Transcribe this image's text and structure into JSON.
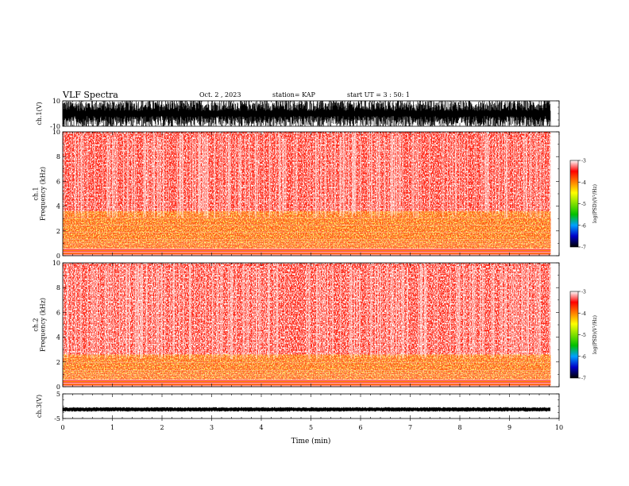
{
  "header": {
    "title": "VLF Spectra",
    "date": "Oct. 2 , 2023",
    "station": "station= KAP",
    "start_ut": "start UT =  3 : 50: 1"
  },
  "chart_data": [
    {
      "type": "line",
      "panel": "ch1-waveform",
      "ylabel": "ch.1(V)",
      "ylim": [
        -10,
        10
      ],
      "y_ticks": [
        "10",
        "-10"
      ],
      "xlim": [
        0,
        10
      ],
      "x_data_extent": [
        0,
        9.83
      ],
      "trace_color": "#000000"
    },
    {
      "type": "heatmap",
      "panel": "ch1-spectrogram",
      "ylabel": "ch.1\nFrequency (kHz)",
      "ylim": [
        0,
        10
      ],
      "y_ticks": [
        "0",
        "2",
        "4",
        "6",
        "8",
        "10"
      ],
      "xlim": [
        0,
        10
      ],
      "x_data_extent": [
        0,
        9.83
      ],
      "intense_band_khz": [
        0.6,
        3.6
      ],
      "colorbar": {
        "label": "log(PSD)(V²/Hz)",
        "range": [
          -7,
          -3
        ],
        "ticks": [
          "-3",
          "-4",
          "-5",
          "-6",
          "-7"
        ],
        "colors": [
          "#000000",
          "#0000c8",
          "#00a0ff",
          "#00c000",
          "#80e000",
          "#ffff00",
          "#ff8000",
          "#ff0000",
          "#ffffff"
        ]
      }
    },
    {
      "type": "heatmap",
      "panel": "ch2-spectrogram",
      "ylabel": "ch.2\nFrequency (kHz)",
      "ylim": [
        0,
        10
      ],
      "y_ticks": [
        "0",
        "2",
        "4",
        "6",
        "8",
        "10"
      ],
      "xlim": [
        0,
        10
      ],
      "x_data_extent": [
        0,
        9.83
      ],
      "intense_band_khz": [
        0.6,
        2.6
      ],
      "colorbar": {
        "label": "log(PSD)(V²/Hz)",
        "range": [
          -7,
          -3
        ],
        "ticks": [
          "-3",
          "-4",
          "-5",
          "-6",
          "-7"
        ],
        "colors": [
          "#000000",
          "#0000c8",
          "#00a0ff",
          "#00c000",
          "#80e000",
          "#ffff00",
          "#ff8000",
          "#ff0000",
          "#ffffff"
        ]
      }
    },
    {
      "type": "line",
      "panel": "ch3-waveform",
      "ylabel": "ch.3(V)",
      "ylim": [
        -5,
        5
      ],
      "y_ticks": [
        "5",
        "-5"
      ],
      "xlim": [
        0,
        10
      ],
      "x_data_extent": [
        0,
        9.83
      ],
      "xlabel": "Time (min)",
      "x_ticks": [
        "0",
        "1",
        "2",
        "3",
        "4",
        "5",
        "6",
        "7",
        "8",
        "9",
        "10"
      ],
      "trace_level_v": -1.3,
      "trace_color": "#000000"
    }
  ]
}
